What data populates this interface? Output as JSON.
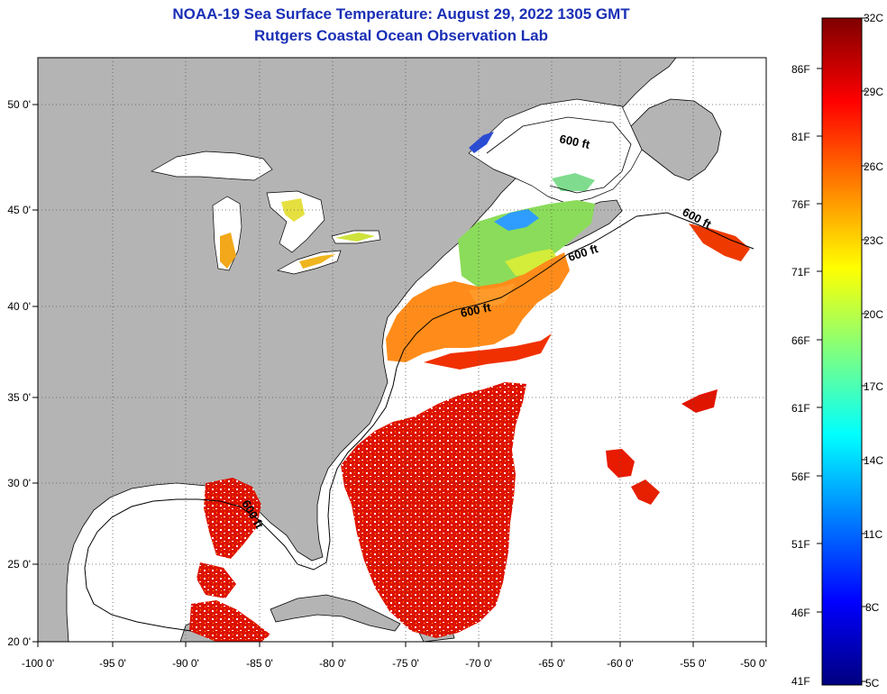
{
  "title": "NOAA-19 Sea Surface Temperature:  August 29, 2022 1305 GMT",
  "subtitle": "Rutgers Coastal Ocean Observation Lab",
  "map": {
    "lon_range": [
      -100,
      -50
    ],
    "lat_range": [
      20,
      52.5
    ],
    "grid": true,
    "lon_ticks": [
      "-100 0'",
      "-95 0'",
      "-90 0'",
      "-85 0'",
      "-80 0'",
      "-75 0'",
      "-70 0'",
      "-65 0'",
      "-60 0'",
      "-55 0'",
      "-50 0'"
    ],
    "lat_ticks": [
      "20 0'",
      "25 0'",
      "30 0'",
      "35 0'",
      "40 0'",
      "45 0'",
      "50 0'"
    ],
    "contour_label": "600 ft",
    "land_color": "#b4b4b4",
    "nodata_color": "#ffffff"
  },
  "colorbar": {
    "celsius_labels": [
      "32C",
      "29C",
      "26C",
      "23C",
      "20C",
      "17C",
      "14C",
      "11C",
      "8C",
      "5C"
    ],
    "fahrenheit_labels": [
      "86F",
      "81F",
      "76F",
      "71F",
      "66F",
      "61F",
      "56F",
      "51F",
      "46F",
      "41F"
    ],
    "colors": [
      "#00007f",
      "#0000ff",
      "#007fff",
      "#00ffff",
      "#7fff7f",
      "#ffff00",
      "#ff7f00",
      "#ff0000",
      "#7f0000"
    ]
  }
}
